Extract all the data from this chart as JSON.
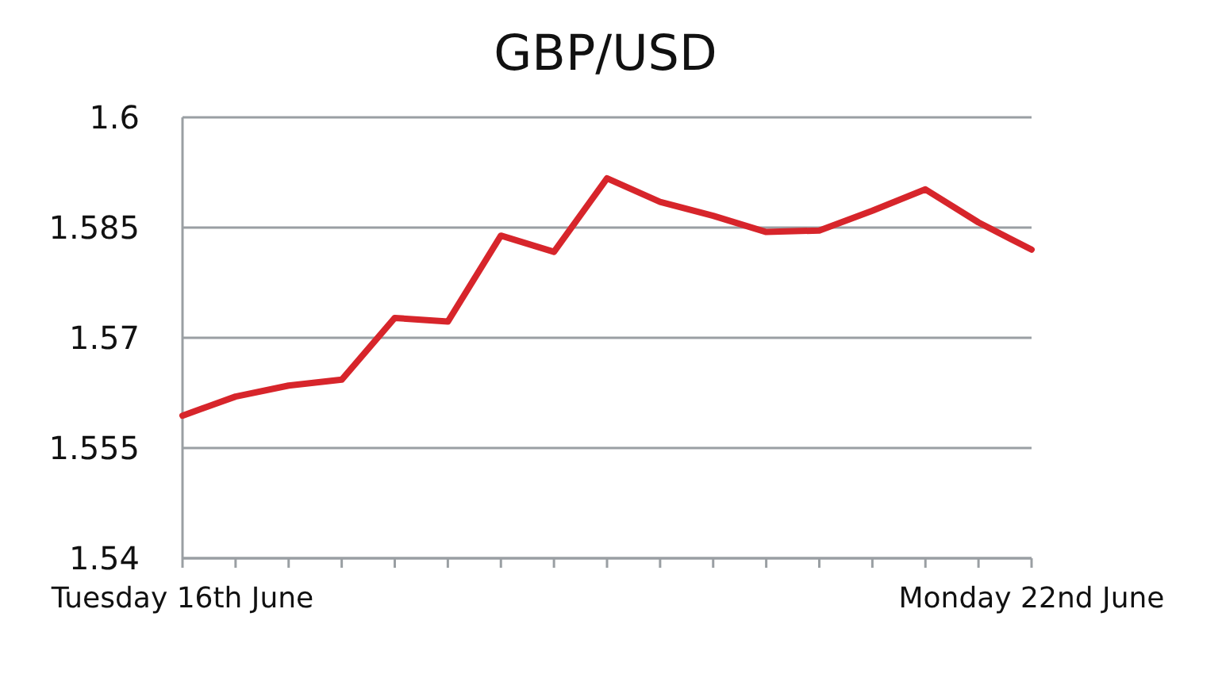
{
  "chart_data": {
    "type": "line",
    "title": "GBP/USD",
    "categories": [
      "Tuesday 16th June",
      null,
      null,
      null,
      null,
      null,
      null,
      null,
      null,
      null,
      null,
      null,
      null,
      null,
      null,
      null,
      "Monday 22nd June"
    ],
    "series": [
      {
        "color": "#d7252b",
        "values": [
          1.5594,
          1.562,
          1.5635,
          1.5643,
          1.5727,
          1.5722,
          1.5839,
          1.5817,
          1.5917,
          1.5885,
          1.5866,
          1.5844,
          1.5846,
          1.5873,
          1.5902,
          1.5857,
          1.582
        ]
      }
    ],
    "ylim": [
      1.54,
      1.6
    ],
    "yticks": [
      1.54,
      1.555,
      1.57,
      1.585,
      1.6
    ],
    "grid": "y",
    "marker": "none",
    "line_style": "solid"
  }
}
